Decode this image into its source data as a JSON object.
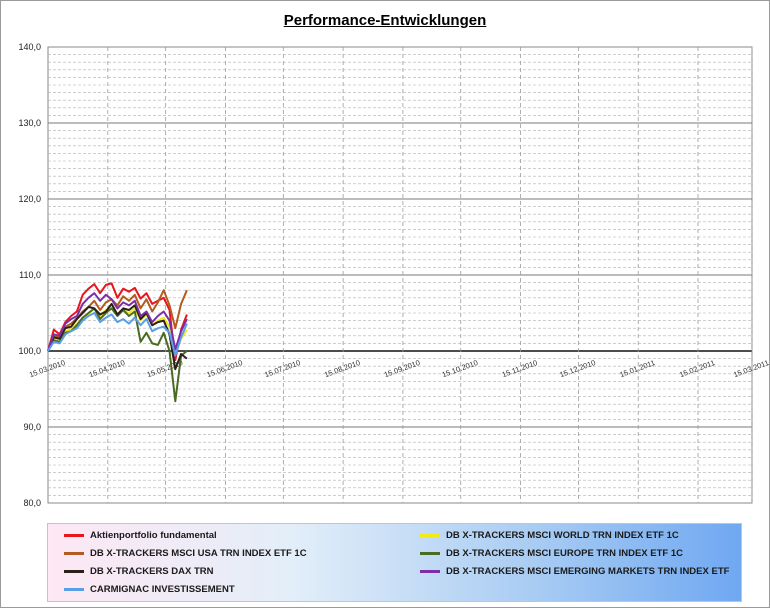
{
  "chart_data": {
    "type": "line",
    "title": "Performance-Entwicklungen",
    "xlabel": "",
    "ylabel": "",
    "ylim": [
      80,
      140
    ],
    "xlim": [
      "15.03.2010",
      "15.03.2011"
    ],
    "y_ticks": [
      "140,0",
      "130,0",
      "120,0",
      "110,0",
      "100,0",
      "90,0",
      "80,0"
    ],
    "y_tick_values": [
      140,
      130,
      120,
      110,
      100,
      90,
      80
    ],
    "x_ticks": [
      "15.03.2010",
      "15.04.2010",
      "15.05.2010",
      "15.06.2010",
      "15.07.2010",
      "15.08.2010",
      "15.09.2010",
      "15.10.2010",
      "15.11.2010",
      "15.12.2010",
      "15.01.2011",
      "15.02.2011",
      "15.03.2011"
    ],
    "grid": true,
    "legend_placement": "bottom",
    "series": [
      {
        "name": "Aktienportfolio fundamental",
        "color": "#e8141e",
        "x": [
          "15.03.2010",
          "18.03.2010",
          "21.03.2010",
          "24.03.2010",
          "27.03.2010",
          "30.03.2010",
          "02.04.2010",
          "05.04.2010",
          "08.04.2010",
          "11.04.2010",
          "14.04.2010",
          "17.04.2010",
          "20.04.2010",
          "23.04.2010",
          "26.04.2010",
          "29.04.2010",
          "02.05.2010",
          "05.05.2010",
          "08.05.2010",
          "11.05.2010",
          "14.05.2010",
          "17.05.2010",
          "20.05.2010",
          "23.05.2010",
          "26.05.2010"
        ],
        "y": [
          100.0,
          102.8,
          102.2,
          103.8,
          104.6,
          105.2,
          107.4,
          108.2,
          108.8,
          107.6,
          108.7,
          108.9,
          107.0,
          108.2,
          107.8,
          108.3,
          106.9,
          107.6,
          106.2,
          106.6,
          107.0,
          105.4,
          98.8,
          102.8,
          104.8
        ]
      },
      {
        "name": "DB X-TRACKERS MSCI WORLD TRN INDEX ETF 1C",
        "color": "#f2ea14",
        "x": [
          "15.03.2010",
          "18.03.2010",
          "21.03.2010",
          "24.03.2010",
          "27.03.2010",
          "30.03.2010",
          "02.04.2010",
          "05.04.2010",
          "08.04.2010",
          "11.04.2010",
          "14.04.2010",
          "17.04.2010",
          "20.04.2010",
          "23.04.2010",
          "26.04.2010",
          "29.04.2010",
          "02.05.2010",
          "05.05.2010",
          "08.05.2010",
          "11.05.2010",
          "14.05.2010",
          "17.05.2010",
          "20.05.2010",
          "23.05.2010",
          "26.05.2010"
        ],
        "y": [
          100.0,
          101.6,
          101.5,
          102.6,
          102.9,
          103.6,
          104.3,
          104.9,
          105.6,
          104.6,
          105.4,
          105.7,
          104.8,
          105.4,
          105.0,
          105.6,
          104.0,
          104.8,
          103.4,
          104.0,
          104.4,
          103.2,
          99.6,
          101.6,
          102.8
        ]
      },
      {
        "name": "DB X-TRACKERS MSCI USA TRN INDEX ETF 1C",
        "color": "#b35a1f",
        "x": [
          "15.03.2010",
          "18.03.2010",
          "21.03.2010",
          "24.03.2010",
          "27.03.2010",
          "30.03.2010",
          "02.04.2010",
          "05.04.2010",
          "08.04.2010",
          "11.04.2010",
          "14.04.2010",
          "17.04.2010",
          "20.04.2010",
          "23.04.2010",
          "26.04.2010",
          "29.04.2010",
          "02.05.2010",
          "05.05.2010",
          "08.05.2010",
          "11.05.2010",
          "14.05.2010",
          "17.05.2010",
          "20.05.2010",
          "23.05.2010",
          "26.05.2010"
        ],
        "y": [
          100.0,
          101.9,
          101.8,
          103.2,
          103.6,
          104.3,
          105.2,
          105.8,
          106.6,
          105.4,
          106.4,
          106.8,
          106.0,
          107.2,
          106.6,
          107.4,
          105.6,
          106.8,
          105.2,
          106.4,
          108.0,
          106.0,
          103.0,
          106.2,
          108.0
        ]
      },
      {
        "name": "DB X-TRACKERS MSCI EUROPE TRN INDEX ETF 1C",
        "color": "#4a6b22",
        "x": [
          "15.03.2010",
          "18.03.2010",
          "21.03.2010",
          "24.03.2010",
          "27.03.2010",
          "30.03.2010",
          "02.04.2010",
          "05.04.2010",
          "08.04.2010",
          "11.04.2010",
          "14.04.2010",
          "17.04.2010",
          "20.04.2010",
          "23.04.2010",
          "26.04.2010",
          "29.04.2010",
          "02.05.2010",
          "05.05.2010",
          "08.05.2010",
          "11.05.2010",
          "14.05.2010",
          "17.05.2010",
          "20.05.2010",
          "23.05.2010",
          "26.05.2010"
        ],
        "y": [
          100.0,
          101.4,
          101.2,
          102.4,
          102.6,
          103.4,
          104.4,
          105.0,
          105.6,
          104.2,
          105.0,
          105.6,
          104.6,
          105.4,
          104.6,
          105.2,
          101.2,
          102.4,
          101.0,
          100.8,
          102.4,
          100.0,
          93.4,
          99.4,
          100.0
        ]
      },
      {
        "name": "DB X-TRACKERS DAX TRN",
        "color": "#2b2018",
        "x": [
          "15.03.2010",
          "18.03.2010",
          "21.03.2010",
          "24.03.2010",
          "27.03.2010",
          "30.03.2010",
          "02.04.2010",
          "05.04.2010",
          "08.04.2010",
          "11.04.2010",
          "14.04.2010",
          "17.04.2010",
          "20.04.2010",
          "23.04.2010",
          "26.04.2010",
          "29.04.2010",
          "02.05.2010",
          "05.05.2010",
          "08.05.2010",
          "11.05.2010",
          "14.05.2010",
          "17.05.2010",
          "20.05.2010",
          "23.05.2010",
          "26.05.2010"
        ],
        "y": [
          100.0,
          101.8,
          101.6,
          103.0,
          103.2,
          104.2,
          105.0,
          105.8,
          105.6,
          104.8,
          105.2,
          106.2,
          104.8,
          105.6,
          105.4,
          106.0,
          104.2,
          105.0,
          103.4,
          103.8,
          104.0,
          102.2,
          97.6,
          99.6,
          99.0
        ]
      },
      {
        "name": "DB X-TRACKERS  MSCI EMERGING MARKETS TRN INDEX ETF",
        "color": "#7a2fa8",
        "x": [
          "15.03.2010",
          "18.03.2010",
          "21.03.2010",
          "24.03.2010",
          "27.03.2010",
          "30.03.2010",
          "02.04.2010",
          "05.04.2010",
          "08.04.2010",
          "11.04.2010",
          "14.04.2010",
          "17.04.2010",
          "20.04.2010",
          "23.04.2010",
          "26.04.2010",
          "29.04.2010",
          "02.05.2010",
          "05.05.2010",
          "08.05.2010",
          "11.05.2010",
          "14.05.2010",
          "17.05.2010",
          "20.05.2010",
          "23.05.2010",
          "26.05.2010"
        ],
        "y": [
          100.0,
          102.2,
          102.0,
          103.6,
          104.2,
          104.6,
          106.2,
          107.0,
          107.6,
          106.6,
          107.4,
          106.8,
          105.6,
          106.4,
          106.0,
          106.6,
          104.6,
          105.2,
          103.8,
          104.6,
          105.2,
          104.0,
          100.2,
          102.6,
          104.2
        ]
      },
      {
        "name": "CARMIGNAC INVESTISSEMENT",
        "color": "#5a9ee6",
        "x": [
          "15.03.2010",
          "18.03.2010",
          "21.03.2010",
          "24.03.2010",
          "27.03.2010",
          "30.03.2010",
          "02.04.2010",
          "05.04.2010",
          "08.04.2010",
          "11.04.2010",
          "14.04.2010",
          "17.04.2010",
          "20.04.2010",
          "23.04.2010",
          "26.04.2010",
          "29.04.2010",
          "02.05.2010",
          "05.05.2010",
          "08.05.2010",
          "11.05.2010",
          "14.05.2010",
          "17.05.2010",
          "20.05.2010",
          "23.05.2010",
          "26.05.2010"
        ],
        "y": [
          100.0,
          101.2,
          101.0,
          102.2,
          102.6,
          103.0,
          104.0,
          104.6,
          105.0,
          103.8,
          104.4,
          104.8,
          103.8,
          104.2,
          103.6,
          104.4,
          103.4,
          104.2,
          102.6,
          103.0,
          103.2,
          102.4,
          99.4,
          101.8,
          103.6
        ]
      }
    ]
  },
  "legend": {
    "items": [
      {
        "label": "Aktienportfolio fundamental",
        "color": "#e8141e"
      },
      {
        "label": "DB X-TRACKERS MSCI WORLD TRN INDEX ETF 1C",
        "color": "#f2ea14"
      },
      {
        "label": "DB X-TRACKERS MSCI USA TRN INDEX ETF 1C",
        "color": "#b35a1f"
      },
      {
        "label": "DB X-TRACKERS MSCI EUROPE TRN INDEX ETF 1C",
        "color": "#4a6b22"
      },
      {
        "label": "DB X-TRACKERS DAX TRN",
        "color": "#2b2018"
      },
      {
        "label": "DB X-TRACKERS  MSCI EMERGING MARKETS TRN INDEX ETF",
        "color": "#7a2fa8"
      },
      {
        "label": "CARMIGNAC INVESTISSEMENT",
        "color": "#5a9ee6"
      }
    ]
  }
}
